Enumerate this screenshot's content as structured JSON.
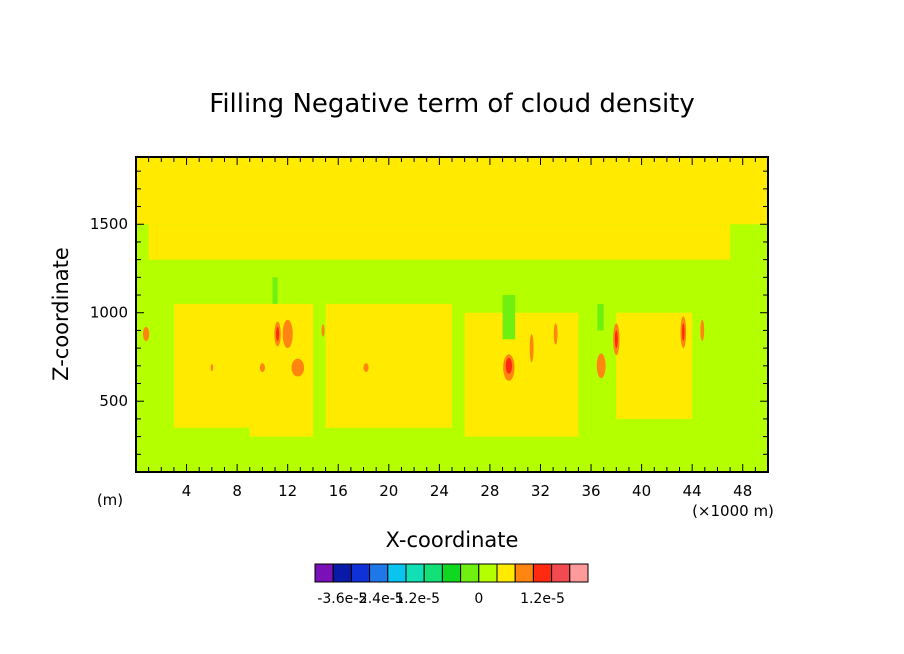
{
  "chart_data": {
    "type": "heatmap",
    "title": "Filling Negative term of cloud density",
    "xlabel": "X-coordinate",
    "ylabel": "Z-coordinate",
    "x_unit_left": "(m)",
    "x_unit_right": "(×1000 m)",
    "xlim": [
      0,
      50
    ],
    "ylim": [
      100,
      1880
    ],
    "x_ticks": [
      4,
      8,
      12,
      16,
      20,
      24,
      28,
      32,
      36,
      40,
      44,
      48
    ],
    "y_ticks": [
      500,
      1000,
      1500
    ],
    "colorbar": {
      "colors": [
        "#7a10b8",
        "#0a1aa8",
        "#1030d8",
        "#1e78e8",
        "#0ac4f0",
        "#10e0b4",
        "#14e078",
        "#10d820",
        "#70f010",
        "#b4ff00",
        "#ffea00",
        "#ff8410",
        "#ff2a10",
        "#f24a50",
        "#ff9a9a"
      ],
      "labels": [
        "-3.6e-5",
        "-2.4e-5",
        "-1.2e-5",
        "0",
        "1.2e-5"
      ]
    },
    "field": {
      "background": "#ffea00",
      "regions": [
        {
          "x": [
            0,
            50
          ],
          "z": [
            100,
            1500
          ],
          "color": "#b4ff00"
        },
        {
          "x": [
            1,
            47
          ],
          "z": [
            1300,
            1500
          ],
          "color": "#ffea00"
        },
        {
          "x": [
            3.5,
            9
          ],
          "z": [
            100,
            300
          ],
          "color": "#b4ff00"
        },
        {
          "x": [
            14,
            22
          ],
          "z": [
            100,
            300
          ],
          "color": "#b4ff00"
        },
        {
          "x": [
            9,
            14
          ],
          "z": [
            300,
            1050
          ],
          "color": "#ffea00"
        },
        {
          "x": [
            15,
            25
          ],
          "z": [
            350,
            1050
          ],
          "color": "#ffea00"
        },
        {
          "x": [
            26,
            35
          ],
          "z": [
            300,
            1000
          ],
          "color": "#ffea00"
        },
        {
          "x": [
            38,
            44
          ],
          "z": [
            400,
            1000
          ],
          "color": "#ffea00"
        },
        {
          "x": [
            3,
            9
          ],
          "z": [
            350,
            1050
          ],
          "color": "#ffea00"
        },
        {
          "x": [
            29,
            30
          ],
          "z": [
            850,
            1100
          ],
          "color": "#70f010"
        },
        {
          "x": [
            36.5,
            37
          ],
          "z": [
            900,
            1050
          ],
          "color": "#70f010"
        },
        {
          "x": [
            10.8,
            11.2
          ],
          "z": [
            1050,
            1200
          ],
          "color": "#70f010"
        }
      ],
      "blobs": [
        {
          "x": 29.5,
          "z": 690,
          "rx": 0.45,
          "rz": 75,
          "color": "#ff8410"
        },
        {
          "x": 29.5,
          "z": 700,
          "rx": 0.25,
          "rz": 45,
          "color": "#ff2a10"
        },
        {
          "x": 12.0,
          "z": 880,
          "rx": 0.4,
          "rz": 80,
          "color": "#ff8410"
        },
        {
          "x": 11.2,
          "z": 880,
          "rx": 0.25,
          "rz": 70,
          "color": "#ff8410"
        },
        {
          "x": 11.2,
          "z": 880,
          "rx": 0.12,
          "rz": 40,
          "color": "#ff2a10"
        },
        {
          "x": 12.8,
          "z": 690,
          "rx": 0.5,
          "rz": 50,
          "color": "#ff8410"
        },
        {
          "x": 38.0,
          "z": 850,
          "rx": 0.25,
          "rz": 90,
          "color": "#ff8410"
        },
        {
          "x": 38.0,
          "z": 850,
          "rx": 0.12,
          "rz": 50,
          "color": "#ff2a10"
        },
        {
          "x": 43.3,
          "z": 890,
          "rx": 0.22,
          "rz": 90,
          "color": "#ff8410"
        },
        {
          "x": 43.3,
          "z": 890,
          "rx": 0.1,
          "rz": 50,
          "color": "#ff2a10"
        },
        {
          "x": 36.8,
          "z": 700,
          "rx": 0.35,
          "rz": 70,
          "color": "#ff8410"
        },
        {
          "x": 44.8,
          "z": 900,
          "rx": 0.15,
          "rz": 60,
          "color": "#ff8410"
        },
        {
          "x": 31.3,
          "z": 800,
          "rx": 0.15,
          "rz": 80,
          "color": "#ff8410"
        },
        {
          "x": 33.2,
          "z": 880,
          "rx": 0.15,
          "rz": 60,
          "color": "#ff8410"
        },
        {
          "x": 0.8,
          "z": 880,
          "rx": 0.25,
          "rz": 40,
          "color": "#ff8410"
        },
        {
          "x": 10.0,
          "z": 690,
          "rx": 0.2,
          "rz": 25,
          "color": "#ff8410"
        },
        {
          "x": 18.2,
          "z": 690,
          "rx": 0.2,
          "rz": 25,
          "color": "#ff8410"
        },
        {
          "x": 14.8,
          "z": 900,
          "rx": 0.12,
          "rz": 35,
          "color": "#ff8410"
        },
        {
          "x": 6.0,
          "z": 690,
          "rx": 0.1,
          "rz": 20,
          "color": "#ff8410"
        }
      ]
    }
  }
}
